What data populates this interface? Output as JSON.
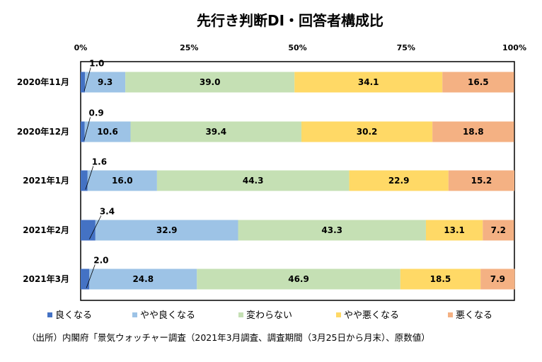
{
  "chart_data": {
    "type": "bar",
    "orientation": "horizontal-stacked-100",
    "title": "先行き判断DI・回答者構成比",
    "xlim": [
      0,
      100
    ],
    "x_ticks": [
      "0%",
      "25%",
      "50%",
      "75%",
      "100%"
    ],
    "categories": [
      "2020年11月",
      "2020年12月",
      "2021年1月",
      "2021年2月",
      "2021年3月"
    ],
    "series": [
      {
        "name": "良くなる",
        "color": "#4472c4",
        "values": [
          1.0,
          0.9,
          1.6,
          3.4,
          2.0
        ]
      },
      {
        "name": "やや良くなる",
        "color": "#9dc3e6",
        "values": [
          9.3,
          10.6,
          16.0,
          32.9,
          24.8
        ]
      },
      {
        "name": "変わらない",
        "color": "#c5e0b4",
        "values": [
          39.0,
          39.4,
          44.3,
          43.3,
          46.9
        ]
      },
      {
        "name": "やや悪くなる",
        "color": "#ffd966",
        "values": [
          34.1,
          30.2,
          22.9,
          13.1,
          18.5
        ]
      },
      {
        "name": "悪くなる",
        "color": "#f4b183",
        "values": [
          16.5,
          18.8,
          15.2,
          7.2,
          7.9
        ]
      }
    ],
    "legend_position": "bottom",
    "grid": false
  },
  "source_note": "（出所）内閣府「景気ウォッチャー調査（2021年3月調査、調査期間（3月25日から月末）、原数値）"
}
